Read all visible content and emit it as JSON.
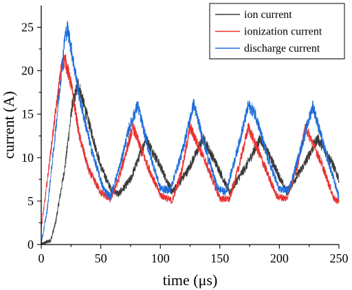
{
  "chart_data": {
    "type": "line",
    "title": "",
    "xlabel": "time (μs)",
    "ylabel": "current (A)",
    "xlim": [
      0,
      250
    ],
    "ylim": [
      0,
      27.5
    ],
    "x_ticks": [
      0,
      50,
      100,
      150,
      200,
      250
    ],
    "y_ticks": [
      0,
      5,
      10,
      15,
      20,
      25
    ],
    "x_tick_labels": [
      "0",
      "50",
      "100",
      "150",
      "200",
      "250"
    ],
    "y_tick_labels": [
      "0",
      "5",
      "10",
      "15",
      "20",
      "25"
    ],
    "grid": false,
    "legend_position": "top-right",
    "noisy_traces": true,
    "series": [
      {
        "name": "ion current",
        "color": "#3a3a3a",
        "x": [
          0,
          8,
          12,
          20,
          26,
          31,
          40,
          50,
          58,
          65,
          75,
          88,
          100,
          110,
          123,
          136,
          148,
          158,
          172,
          184,
          196,
          206,
          220,
          232,
          244,
          250
        ],
        "y": [
          0,
          0.5,
          2.5,
          9,
          16,
          18.5,
          14,
          9,
          6.5,
          5.8,
          7.5,
          12.2,
          9,
          6,
          8.5,
          12.2,
          9,
          6,
          9,
          12.2,
          9,
          6,
          9,
          12.2,
          9.5,
          7.5
        ]
      },
      {
        "name": "ionization current",
        "color": "#e8312f",
        "x": [
          0,
          3,
          10,
          17,
          20,
          25,
          32,
          40,
          50,
          58,
          65,
          72,
          77,
          88,
          100,
          110,
          118,
          125,
          138,
          150,
          158,
          166,
          174,
          186,
          198,
          206,
          215,
          222,
          235,
          246,
          250
        ],
        "y": [
          2,
          5,
          13,
          20.5,
          21.3,
          18.5,
          12.5,
          8.5,
          6,
          5.2,
          7.5,
          11,
          13.5,
          9.5,
          5.7,
          5,
          8.5,
          13.5,
          9.5,
          5.3,
          5.2,
          9,
          13.5,
          9.5,
          5.5,
          5.3,
          9,
          13.5,
          9.5,
          5.2,
          5
        ]
      },
      {
        "name": "discharge current",
        "color": "#1f6fdc",
        "x": [
          0,
          5,
          12,
          20,
          22,
          24,
          32,
          42,
          52,
          58,
          66,
          74,
          81,
          90,
          100,
          108,
          118,
          128,
          138,
          148,
          155,
          164,
          174,
          180,
          190,
          200,
          208,
          218,
          228,
          238,
          250
        ],
        "y": [
          0,
          4,
          13,
          24,
          24.8,
          23.5,
          17,
          11,
          6.5,
          5.5,
          9,
          13.5,
          16,
          11,
          6.5,
          6.2,
          10.5,
          16.2,
          11,
          6.5,
          6,
          10.5,
          16,
          15,
          10,
          6.3,
          6.3,
          11,
          16,
          11,
          5.5
        ]
      }
    ]
  }
}
